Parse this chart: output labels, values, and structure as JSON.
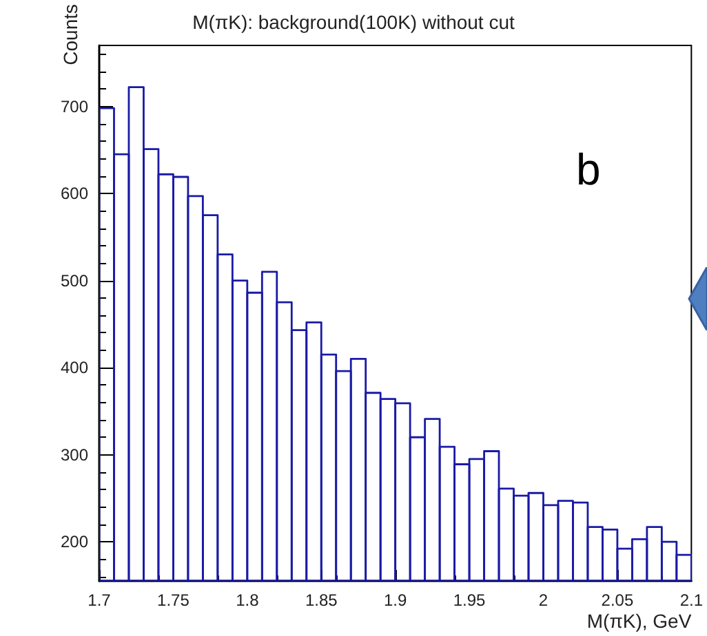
{
  "chart_data": {
    "type": "histogram",
    "title": "M(πK): background(100K) without cut",
    "xlabel": "M(πK), GeV",
    "ylabel": "Counts",
    "annotations": [
      "b"
    ],
    "bins": [
      1.7,
      1.71,
      1.72,
      1.73,
      1.74,
      1.75,
      1.76,
      1.77,
      1.78,
      1.79,
      1.8,
      1.81,
      1.82,
      1.83,
      1.84,
      1.85,
      1.86,
      1.87,
      1.88,
      1.89,
      1.9,
      1.91,
      1.92,
      1.93,
      1.94,
      1.95,
      1.96,
      1.97,
      1.98,
      1.99,
      2.0,
      2.01,
      2.02,
      2.03,
      2.04,
      2.05,
      2.06,
      2.07,
      2.08,
      2.09,
      2.1
    ],
    "values": [
      698,
      645,
      722,
      651,
      622,
      619,
      597,
      575,
      530,
      500,
      486,
      510,
      475,
      443,
      452,
      415,
      396,
      410,
      371,
      364,
      359,
      320,
      341,
      309,
      289,
      295,
      304,
      261,
      253,
      256,
      242,
      247,
      245,
      217,
      214,
      192,
      203,
      217,
      200,
      185
    ],
    "color": "#1a1aa6",
    "xlim": [
      1.7,
      2.1
    ],
    "xticks": [
      1.7,
      1.75,
      1.8,
      1.85,
      1.9,
      1.95,
      2,
      2.05,
      2.1
    ],
    "ylim": [
      155,
      770
    ],
    "yticks": [
      200,
      300,
      400,
      500,
      600,
      700
    ],
    "grid": false
  }
}
